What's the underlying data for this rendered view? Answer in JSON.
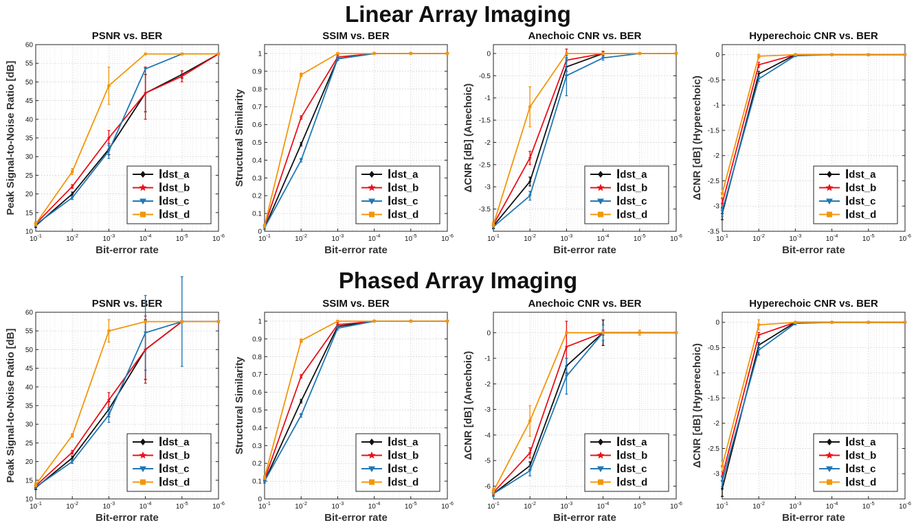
{
  "sections": [
    {
      "title": "Linear Array Imaging"
    },
    {
      "title": "Phased Array Imaging"
    }
  ],
  "series_colors": {
    "dst_a": "#111111",
    "dst_b": "#e8101a",
    "dst_c": "#1f77b4",
    "dst_d": "#f2960c"
  },
  "chart_data": [
    {
      "type": "line",
      "section": "Linear Array Imaging",
      "title": "PSNR vs. BER",
      "xlabel": "Bit-error rate",
      "ylabel": "Peak Signal-to-Noise Ratio [dB]",
      "x": [
        0.1,
        0.01,
        0.001,
        0.0001,
        1e-05,
        1e-06
      ],
      "x_ticks": [
        "10-1",
        "10-2",
        "10-3",
        "10-4",
        "10-5",
        "10-6"
      ],
      "ylim": [
        10,
        60
      ],
      "y_ticks": [
        10,
        15,
        20,
        25,
        30,
        35,
        40,
        45,
        50,
        55,
        60
      ],
      "y_tick_labels": [
        "10",
        "15",
        "20",
        "25",
        "30",
        "35",
        "40",
        "45",
        "50",
        "55",
        "60"
      ],
      "grid": true,
      "legend": "bottom-right",
      "series": [
        {
          "name": "dst_a",
          "values": [
            11.5,
            20,
            32,
            47,
            52,
            57.5
          ],
          "err": [
            0.5,
            0.5,
            1.5,
            5,
            1,
            0
          ]
        },
        {
          "name": "dst_b",
          "values": [
            12,
            22,
            35,
            47,
            51.5,
            57.5
          ],
          "err": [
            0.5,
            0.5,
            2,
            7,
            1.5,
            0
          ]
        },
        {
          "name": "dst_c",
          "values": [
            11.8,
            19,
            31.5,
            53.5,
            57.5,
            57.5
          ],
          "err": [
            0.5,
            0.5,
            2,
            0,
            0,
            0
          ]
        },
        {
          "name": "dst_d",
          "values": [
            12,
            26,
            49,
            57.5,
            57.5,
            57.5
          ],
          "err": [
            0.5,
            0.8,
            5,
            0,
            0,
            0
          ]
        }
      ]
    },
    {
      "type": "line",
      "section": "Linear Array Imaging",
      "title": "SSIM vs. BER",
      "xlabel": "Bit-error rate",
      "ylabel": "Structural Similarity",
      "x": [
        0.1,
        0.01,
        0.001,
        0.0001,
        1e-05,
        1e-06
      ],
      "x_ticks": [
        "10-1",
        "10-2",
        "10-3",
        "10-4",
        "10-5",
        "10-6"
      ],
      "ylim": [
        0,
        1.05
      ],
      "y_ticks": [
        0,
        0.1,
        0.2,
        0.3,
        0.4,
        0.5,
        0.6,
        0.7,
        0.8,
        0.9,
        1
      ],
      "y_tick_labels": [
        "0",
        "0.1",
        "0.2",
        "0.3",
        "0.4",
        "0.5",
        "0.6",
        "0.7",
        "0.8",
        "0.9",
        "1"
      ],
      "grid": true,
      "legend": "bottom-right",
      "series": [
        {
          "name": "dst_a",
          "values": [
            0.02,
            0.49,
            0.97,
            1,
            1,
            1
          ],
          "err": [
            0.01,
            0.01,
            0.01,
            0,
            0,
            0
          ]
        },
        {
          "name": "dst_b",
          "values": [
            0.03,
            0.64,
            0.98,
            1,
            1,
            1
          ],
          "err": [
            0.01,
            0.01,
            0.01,
            0,
            0,
            0
          ]
        },
        {
          "name": "dst_c",
          "values": [
            0.02,
            0.4,
            0.97,
            1,
            1,
            1
          ],
          "err": [
            0.01,
            0.01,
            0.01,
            0,
            0,
            0
          ]
        },
        {
          "name": "dst_d",
          "values": [
            0.03,
            0.88,
            1,
            1,
            1,
            1
          ],
          "err": [
            0.01,
            0.01,
            0,
            0,
            0,
            0
          ]
        }
      ]
    },
    {
      "type": "line",
      "section": "Linear Array Imaging",
      "title": "Anechoic CNR vs. BER",
      "xlabel": "Bit-error rate",
      "ylabel": "ΔCNR [dB] (Anechoic)",
      "x": [
        0.1,
        0.01,
        0.001,
        0.0001,
        1e-05,
        1e-06
      ],
      "x_ticks": [
        "10-1",
        "10-2",
        "10-3",
        "10-4",
        "10-5",
        "10-6"
      ],
      "ylim": [
        -4,
        0.2
      ],
      "y_ticks": [
        -3.5,
        -3,
        -2.5,
        -2,
        -1.5,
        -1,
        -0.5,
        0
      ],
      "y_tick_labels": [
        "-3.5",
        "-3",
        "-2.5",
        "-2",
        "-1.5",
        "-1",
        "-0.5",
        "0"
      ],
      "grid": true,
      "legend": "bottom-right",
      "series": [
        {
          "name": "dst_a",
          "values": [
            -3.88,
            -2.88,
            -0.3,
            0,
            0,
            0
          ],
          "err": [
            0.05,
            0.1,
            0.2,
            0.05,
            0,
            0
          ]
        },
        {
          "name": "dst_b",
          "values": [
            -3.85,
            -2.35,
            -0.15,
            0,
            0,
            0
          ],
          "err": [
            0.05,
            0.15,
            0.25,
            0.05,
            0,
            0
          ]
        },
        {
          "name": "dst_c",
          "values": [
            -3.9,
            -3.2,
            -0.5,
            -0.1,
            0,
            0
          ],
          "err": [
            0.05,
            0.1,
            0.45,
            0.05,
            0,
            0
          ]
        },
        {
          "name": "dst_d",
          "values": [
            -3.85,
            -1.2,
            0,
            0,
            0,
            0
          ],
          "err": [
            0.05,
            0.45,
            0,
            0,
            0,
            0
          ]
        }
      ]
    },
    {
      "type": "line",
      "section": "Linear Array Imaging",
      "title": "Hyperechoic CNR vs. BER",
      "xlabel": "Bit-error rate",
      "ylabel": "ΔCNR [dB] (Hyperechoic)",
      "x": [
        0.1,
        0.01,
        0.001,
        0.0001,
        1e-05,
        1e-06
      ],
      "x_ticks": [
        "10-1",
        "10-2",
        "10-3",
        "10-4",
        "10-5",
        "10-6"
      ],
      "ylim": [
        -3.5,
        0.2
      ],
      "y_ticks": [
        -3.5,
        -3,
        -2.5,
        -2,
        -1.5,
        -1,
        -0.5,
        0
      ],
      "y_tick_labels": [
        "-3.5",
        "-3",
        "-2.5",
        "-2",
        "-1.5",
        "-1",
        "-0.5",
        "0"
      ],
      "grid": true,
      "legend": "bottom-right",
      "series": [
        {
          "name": "dst_a",
          "values": [
            -3.15,
            -0.38,
            0,
            0,
            0,
            0
          ],
          "err": [
            0.12,
            0.05,
            0,
            0,
            0,
            0
          ]
        },
        {
          "name": "dst_b",
          "values": [
            -2.95,
            -0.2,
            0,
            0,
            0,
            0
          ],
          "err": [
            0.1,
            0.05,
            0,
            0,
            0,
            0
          ]
        },
        {
          "name": "dst_c",
          "values": [
            -3.1,
            -0.48,
            -0.02,
            0,
            0,
            0
          ],
          "err": [
            0.1,
            0.05,
            0.02,
            0,
            0,
            0
          ]
        },
        {
          "name": "dst_d",
          "values": [
            -2.75,
            -0.03,
            0,
            0,
            0,
            0
          ],
          "err": [
            0.08,
            0.04,
            0,
            0,
            0,
            0
          ]
        }
      ]
    },
    {
      "type": "line",
      "section": "Phased Array Imaging",
      "title": "PSNR vs. BER",
      "xlabel": "Bit-error rate",
      "ylabel": "Peak Signal-to-Noise Ratio [dB]",
      "x": [
        0.1,
        0.01,
        0.001,
        0.0001,
        1e-05,
        1e-06
      ],
      "x_ticks": [
        "10-1",
        "10-2",
        "10-3",
        "10-4",
        "10-5",
        "10-6"
      ],
      "ylim": [
        10,
        60
      ],
      "y_ticks": [
        10,
        15,
        20,
        25,
        30,
        35,
        40,
        45,
        50,
        55,
        60
      ],
      "y_tick_labels": [
        "10",
        "15",
        "20",
        "25",
        "30",
        "35",
        "40",
        "45",
        "50",
        "55",
        "60"
      ],
      "grid": true,
      "legend": "bottom-right",
      "series": [
        {
          "name": "dst_a",
          "values": [
            13,
            21,
            34,
            50,
            57.5,
            57.5
          ],
          "err": [
            0.5,
            0.5,
            2,
            8,
            0,
            0
          ]
        },
        {
          "name": "dst_b",
          "values": [
            13.5,
            22.5,
            36.5,
            50,
            57.5,
            57.5
          ],
          "err": [
            0.5,
            0.5,
            2,
            9,
            0,
            0
          ]
        },
        {
          "name": "dst_c",
          "values": [
            13.2,
            20,
            32.5,
            54.5,
            57.5,
            57.5
          ],
          "err": [
            0.5,
            0.5,
            2,
            10,
            12,
            0
          ]
        },
        {
          "name": "dst_d",
          "values": [
            13.8,
            27,
            55,
            57.5,
            57.5,
            57.5
          ],
          "err": [
            0.5,
            0.5,
            3,
            0,
            0,
            0
          ]
        }
      ]
    },
    {
      "type": "line",
      "section": "Phased Array Imaging",
      "title": "SSIM vs. BER",
      "xlabel": "Bit-error rate",
      "ylabel": "Structural Similarity",
      "x": [
        0.1,
        0.01,
        0.001,
        0.0001,
        1e-05,
        1e-06
      ],
      "x_ticks": [
        "10-1",
        "10-2",
        "10-3",
        "10-4",
        "10-5",
        "10-6"
      ],
      "ylim": [
        0,
        1.05
      ],
      "y_ticks": [
        0,
        0.1,
        0.2,
        0.3,
        0.4,
        0.5,
        0.6,
        0.7,
        0.8,
        0.9,
        1
      ],
      "y_tick_labels": [
        "0",
        "0.1",
        "0.2",
        "0.3",
        "0.4",
        "0.5",
        "0.6",
        "0.7",
        "0.8",
        "0.9",
        "1"
      ],
      "grid": true,
      "legend": "bottom-right",
      "series": [
        {
          "name": "dst_a",
          "values": [
            0.1,
            0.55,
            0.97,
            1,
            1,
            1
          ],
          "err": [
            0.01,
            0.01,
            0.01,
            0,
            0,
            0
          ]
        },
        {
          "name": "dst_b",
          "values": [
            0.11,
            0.69,
            0.98,
            1,
            1,
            1
          ],
          "err": [
            0.01,
            0.01,
            0.01,
            0,
            0,
            0
          ]
        },
        {
          "name": "dst_c",
          "values": [
            0.1,
            0.47,
            0.96,
            1,
            1,
            1
          ],
          "err": [
            0.01,
            0.01,
            0.01,
            0,
            0,
            0
          ]
        },
        {
          "name": "dst_d",
          "values": [
            0.12,
            0.89,
            1,
            1,
            1,
            1
          ],
          "err": [
            0.01,
            0.01,
            0,
            0,
            0,
            0
          ]
        }
      ]
    },
    {
      "type": "line",
      "section": "Phased Array Imaging",
      "title": "Anechoic CNR vs. BER",
      "xlabel": "Bit-error rate",
      "ylabel": "ΔCNR [dB] (Anechoic)",
      "x": [
        0.1,
        0.01,
        0.001,
        0.0001,
        1e-05,
        1e-06
      ],
      "x_ticks": [
        "10-1",
        "10-2",
        "10-3",
        "10-4",
        "10-5",
        "10-6"
      ],
      "ylim": [
        -6.5,
        0.8
      ],
      "y_ticks": [
        -6,
        -5,
        -4,
        -3,
        -2,
        -1,
        0
      ],
      "y_tick_labels": [
        "-6",
        "-5",
        "-4",
        "-3",
        "-2",
        "-1",
        "0"
      ],
      "grid": true,
      "legend": "bottom-right",
      "series": [
        {
          "name": "dst_a",
          "values": [
            -6.3,
            -5.2,
            -1.3,
            0,
            0,
            0
          ],
          "err": [
            0.1,
            0.15,
            0.3,
            0.5,
            0,
            0
          ]
        },
        {
          "name": "dst_b",
          "values": [
            -6.25,
            -4.7,
            -0.55,
            0,
            0,
            0
          ],
          "err": [
            0.1,
            0.2,
            1,
            0.1,
            0,
            0
          ]
        },
        {
          "name": "dst_c",
          "values": [
            -6.3,
            -5.4,
            -1.7,
            0,
            0,
            0
          ],
          "err": [
            0.1,
            0.2,
            0.7,
            0.3,
            0,
            0
          ]
        },
        {
          "name": "dst_d",
          "values": [
            -6.2,
            -3.45,
            0,
            0,
            0,
            0
          ],
          "err": [
            0.1,
            0.6,
            0,
            0,
            0.1,
            0
          ]
        }
      ]
    },
    {
      "type": "line",
      "section": "Phased Array Imaging",
      "title": "Hyperechoic CNR vs. BER",
      "xlabel": "Bit-error rate",
      "ylabel": "ΔCNR [dB] (Hyperechoic)",
      "x": [
        0.1,
        0.01,
        0.001,
        0.0001,
        1e-05,
        1e-06
      ],
      "x_ticks": [
        "10-1",
        "10-2",
        "10-3",
        "10-4",
        "10-5",
        "10-6"
      ],
      "ylim": [
        -3.5,
        0.2
      ],
      "y_ticks": [
        -3.5,
        -3,
        -2.5,
        -2,
        -1.5,
        -1,
        -0.5,
        0
      ],
      "y_tick_labels": [
        "",
        "-3",
        "-2.5",
        "-2",
        "-1.5",
        "-1",
        "-0.5",
        "0"
      ],
      "grid": true,
      "legend": "bottom-right",
      "series": [
        {
          "name": "dst_a",
          "values": [
            -3.3,
            -0.45,
            0,
            0,
            0,
            0
          ],
          "err": [
            0.15,
            0.05,
            0,
            0,
            0,
            0
          ]
        },
        {
          "name": "dst_b",
          "values": [
            -3.05,
            -0.25,
            0,
            0,
            0,
            0
          ],
          "err": [
            0.1,
            0.05,
            0,
            0,
            0,
            0
          ]
        },
        {
          "name": "dst_c",
          "values": [
            -3.15,
            -0.55,
            -0.02,
            0,
            0,
            0
          ],
          "err": [
            0.1,
            0.1,
            0.03,
            0,
            0,
            0
          ]
        },
        {
          "name": "dst_d",
          "values": [
            -2.85,
            -0.05,
            0,
            0,
            0,
            0
          ],
          "err": [
            0.1,
            0.1,
            0,
            0,
            0,
            0
          ]
        }
      ]
    }
  ]
}
